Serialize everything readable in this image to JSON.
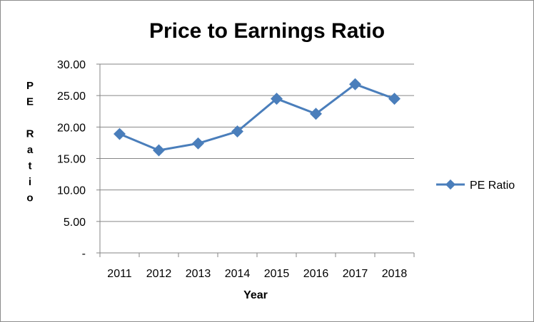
{
  "chart_data": {
    "type": "line",
    "title": "Price to Earnings Ratio",
    "xlabel": "Year",
    "ylabel": "PE Ratio",
    "categories": [
      "2011",
      "2012",
      "2013",
      "2014",
      "2015",
      "2016",
      "2017",
      "2018"
    ],
    "series": [
      {
        "name": "PE Ratio",
        "values": [
          18.9,
          16.3,
          17.4,
          19.3,
          24.5,
          22.1,
          26.8,
          24.5
        ]
      }
    ],
    "ylim": [
      0,
      30
    ],
    "ytick_labels": [
      "-",
      "5.00",
      "10.00",
      "15.00",
      "20.00",
      "25.00",
      "30.00"
    ],
    "grid": true,
    "legend_position": "right",
    "colors": {
      "series": "#4a7ebb",
      "grid": "#868686",
      "axis": "#868686"
    }
  }
}
